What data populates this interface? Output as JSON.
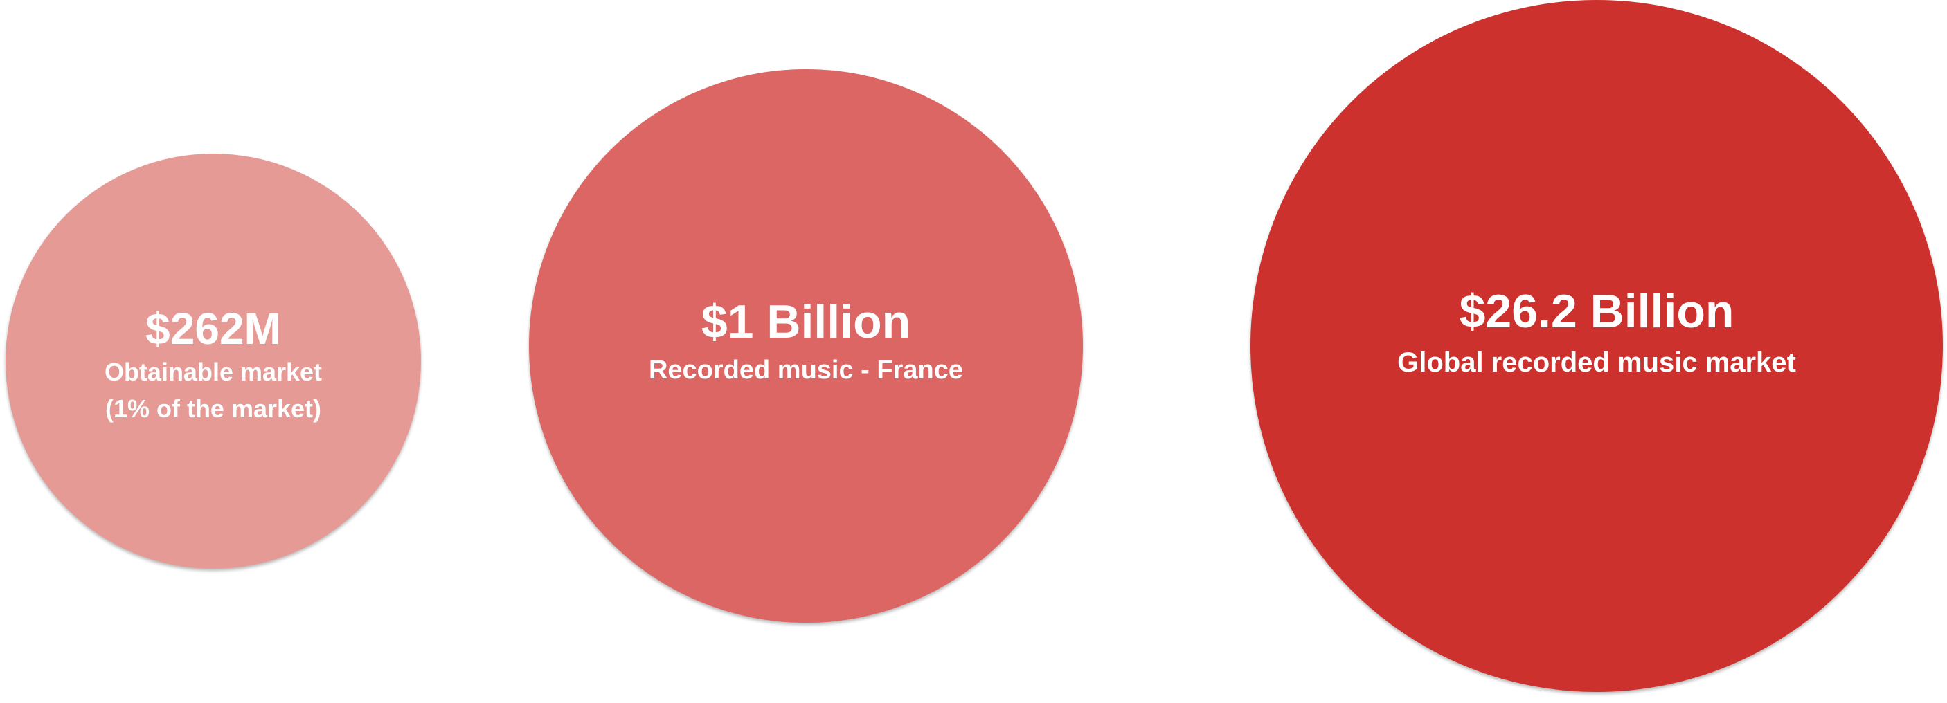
{
  "circles": [
    {
      "value": "$262M",
      "caption_line1": "Obtainable market",
      "caption_line2": "(1% of the market)",
      "color": "#e69a96"
    },
    {
      "value": "$1 Billion",
      "caption_line1": "Recorded music - France",
      "color": "#db6663"
    },
    {
      "value": "$26.2 Billion",
      "caption_line1": "Global recorded music market",
      "color": "#cd312d"
    }
  ]
}
